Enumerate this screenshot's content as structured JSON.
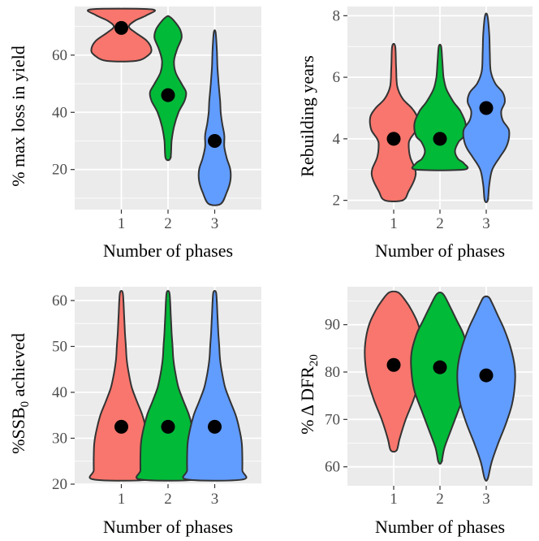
{
  "chart_data": [
    {
      "type": "violin",
      "xlabel": "Number of phases",
      "ylabel": "% max loss in yield",
      "categories": [
        "1",
        "2",
        "3"
      ],
      "yticks": [
        20,
        40,
        60
      ],
      "ylim": [
        6,
        77
      ],
      "grid": true,
      "medians": [
        69.5,
        46,
        30
      ],
      "violins": [
        {
          "category": "1",
          "color": "#F8766D",
          "profile": [
            [
              58,
              0.5
            ],
            [
              60,
              0.9
            ],
            [
              62,
              1.0
            ],
            [
              65,
              0.85
            ],
            [
              68,
              0.45
            ],
            [
              70,
              0.25
            ],
            [
              72,
              0.45
            ],
            [
              74,
              0.85
            ],
            [
              76,
              1.0
            ]
          ]
        },
        {
          "category": "2",
          "color": "#00BA38",
          "profile": [
            [
              24,
              0.08
            ],
            [
              30,
              0.12
            ],
            [
              35,
              0.2
            ],
            [
              40,
              0.35
            ],
            [
              44,
              0.55
            ],
            [
              47,
              0.6
            ],
            [
              50,
              0.45
            ],
            [
              54,
              0.25
            ],
            [
              58,
              0.2
            ],
            [
              62,
              0.3
            ],
            [
              66,
              0.45
            ],
            [
              69,
              0.4
            ],
            [
              72,
              0.2
            ],
            [
              73.5,
              0.04
            ]
          ]
        },
        {
          "category": "3",
          "color": "#619CFF",
          "profile": [
            [
              8,
              0.2
            ],
            [
              12,
              0.4
            ],
            [
              16,
              0.52
            ],
            [
              20,
              0.52
            ],
            [
              24,
              0.4
            ],
            [
              28,
              0.32
            ],
            [
              32,
              0.32
            ],
            [
              36,
              0.25
            ],
            [
              40,
              0.2
            ],
            [
              44,
              0.18
            ],
            [
              50,
              0.13
            ],
            [
              56,
              0.09
            ],
            [
              62,
              0.07
            ],
            [
              68,
              0.03
            ]
          ]
        }
      ]
    },
    {
      "type": "violin",
      "xlabel": "Number of phases",
      "ylabel": "Rebuilding years",
      "categories": [
        "1",
        "2",
        "3"
      ],
      "yticks": [
        2,
        4,
        6,
        8
      ],
      "ylim": [
        1.7,
        8.3
      ],
      "grid": true,
      "medians": [
        4,
        4,
        5
      ],
      "violins": [
        {
          "category": "1",
          "color": "#F8766D",
          "profile": [
            [
              2,
              0.3
            ],
            [
              2.3,
              0.5
            ],
            [
              2.7,
              0.7
            ],
            [
              3,
              0.72
            ],
            [
              3.4,
              0.55
            ],
            [
              3.8,
              0.5
            ],
            [
              4,
              0.55
            ],
            [
              4.3,
              0.75
            ],
            [
              4.7,
              0.78
            ],
            [
              5,
              0.6
            ],
            [
              5.3,
              0.3
            ],
            [
              5.7,
              0.12
            ],
            [
              6.3,
              0.08
            ],
            [
              7,
              0.05
            ]
          ]
        },
        {
          "category": "2",
          "color": "#00BA38",
          "profile": [
            [
              3,
              0.8
            ],
            [
              3.2,
              0.8
            ],
            [
              3.35,
              0.6
            ],
            [
              3.6,
              0.5
            ],
            [
              3.9,
              0.62
            ],
            [
              4.1,
              0.8
            ],
            [
              4.5,
              0.85
            ],
            [
              4.9,
              0.68
            ],
            [
              5.2,
              0.45
            ],
            [
              5.6,
              0.22
            ],
            [
              6,
              0.12
            ],
            [
              6.5,
              0.08
            ],
            [
              7,
              0.04
            ]
          ]
        },
        {
          "category": "3",
          "color": "#619CFF",
          "profile": [
            [
              2,
              0.05
            ],
            [
              2.5,
              0.1
            ],
            [
              3,
              0.2
            ],
            [
              3.4,
              0.45
            ],
            [
              3.7,
              0.65
            ],
            [
              4,
              0.75
            ],
            [
              4.3,
              0.75
            ],
            [
              4.6,
              0.55
            ],
            [
              4.9,
              0.5
            ],
            [
              5.2,
              0.62
            ],
            [
              5.5,
              0.55
            ],
            [
              5.8,
              0.3
            ],
            [
              6.2,
              0.15
            ],
            [
              6.8,
              0.12
            ],
            [
              7.4,
              0.1
            ],
            [
              8,
              0.04
            ]
          ]
        }
      ]
    },
    {
      "type": "violin",
      "xlabel": "Number of phases",
      "ylabel": "%SSB",
      "ylabel_sub": "0",
      "ylabel_suffix": " achieved",
      "categories": [
        "1",
        "2",
        "3"
      ],
      "yticks": [
        20,
        30,
        40,
        50,
        60
      ],
      "ylim": [
        20,
        63
      ],
      "grid": true,
      "medians": [
        32.5,
        32.5,
        32.5
      ],
      "violins": [
        {
          "category": "1",
          "color": "#F8766D",
          "profile": [
            [
              21,
              0.92
            ],
            [
              23,
              0.92
            ],
            [
              26,
              0.92
            ],
            [
              29,
              0.9
            ],
            [
              32,
              0.82
            ],
            [
              35,
              0.7
            ],
            [
              38,
              0.52
            ],
            [
              41,
              0.35
            ],
            [
              44,
              0.25
            ],
            [
              47,
              0.18
            ],
            [
              50,
              0.15
            ],
            [
              53,
              0.12
            ],
            [
              57,
              0.09
            ],
            [
              61,
              0.06
            ],
            [
              62,
              0.03
            ]
          ]
        },
        {
          "category": "2",
          "color": "#00BA38",
          "profile": [
            [
              21,
              0.92
            ],
            [
              23,
              0.92
            ],
            [
              26,
              0.92
            ],
            [
              29,
              0.9
            ],
            [
              32,
              0.82
            ],
            [
              35,
              0.7
            ],
            [
              38,
              0.52
            ],
            [
              41,
              0.35
            ],
            [
              44,
              0.25
            ],
            [
              47,
              0.18
            ],
            [
              50,
              0.15
            ],
            [
              53,
              0.12
            ],
            [
              57,
              0.09
            ],
            [
              61,
              0.06
            ],
            [
              62,
              0.03
            ]
          ]
        },
        {
          "category": "3",
          "color": "#619CFF",
          "profile": [
            [
              21,
              0.92
            ],
            [
              23,
              0.92
            ],
            [
              26,
              0.92
            ],
            [
              29,
              0.9
            ],
            [
              32,
              0.82
            ],
            [
              35,
              0.7
            ],
            [
              38,
              0.52
            ],
            [
              41,
              0.35
            ],
            [
              44,
              0.25
            ],
            [
              47,
              0.18
            ],
            [
              50,
              0.15
            ],
            [
              53,
              0.12
            ],
            [
              57,
              0.09
            ],
            [
              61,
              0.06
            ],
            [
              62,
              0.03
            ]
          ]
        }
      ]
    },
    {
      "type": "violin",
      "xlabel": "Number of phases",
      "ylabel": "% Δ DFR",
      "ylabel_sub": "20",
      "ylabel_suffix": "",
      "categories": [
        "1",
        "2",
        "3"
      ],
      "yticks": [
        60,
        70,
        80,
        90
      ],
      "ylim": [
        56,
        98
      ],
      "grid": true,
      "medians": [
        81.5,
        81,
        79.3
      ],
      "violins": [
        {
          "category": "1",
          "color": "#F8766D",
          "profile": [
            [
              63.5,
              0.1
            ],
            [
              66,
              0.2
            ],
            [
              70,
              0.4
            ],
            [
              74,
              0.65
            ],
            [
              78,
              0.85
            ],
            [
              82,
              0.95
            ],
            [
              86,
              0.95
            ],
            [
              90,
              0.82
            ],
            [
              93,
              0.6
            ],
            [
              95,
              0.4
            ],
            [
              96.8,
              0.15
            ]
          ]
        },
        {
          "category": "2",
          "color": "#00BA38",
          "profile": [
            [
              61,
              0.05
            ],
            [
              64,
              0.15
            ],
            [
              68,
              0.38
            ],
            [
              72,
              0.62
            ],
            [
              76,
              0.85
            ],
            [
              80,
              0.95
            ],
            [
              84,
              0.95
            ],
            [
              88,
              0.78
            ],
            [
              91,
              0.55
            ],
            [
              94,
              0.32
            ],
            [
              96.5,
              0.1
            ]
          ]
        },
        {
          "category": "3",
          "color": "#619CFF",
          "profile": [
            [
              57.5,
              0.05
            ],
            [
              61,
              0.18
            ],
            [
              65,
              0.4
            ],
            [
              69,
              0.65
            ],
            [
              73,
              0.85
            ],
            [
              77,
              0.95
            ],
            [
              81,
              0.95
            ],
            [
              85,
              0.82
            ],
            [
              89,
              0.6
            ],
            [
              92,
              0.38
            ],
            [
              94.5,
              0.2
            ],
            [
              95.8,
              0.08
            ]
          ]
        }
      ]
    }
  ]
}
